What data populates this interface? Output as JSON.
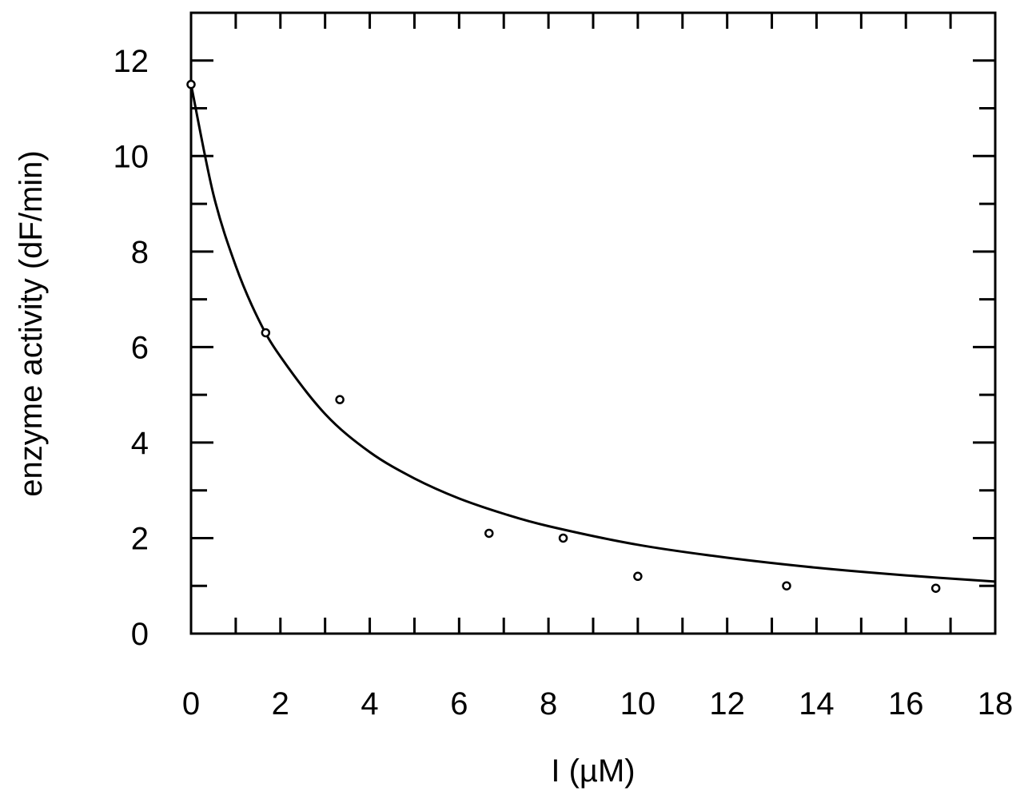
{
  "chart_data": {
    "type": "scatter",
    "title": "",
    "xlabel": "I (µM)",
    "ylabel": "enzyme activity (dF/min)",
    "xlim": [
      0,
      18
    ],
    "ylim": [
      0,
      13
    ],
    "x_ticks": [
      0,
      2,
      4,
      6,
      8,
      10,
      12,
      14,
      16,
      18
    ],
    "x_tick_labels": [
      "0",
      "2",
      "4",
      "6",
      "8",
      "10",
      "12",
      "14",
      "16",
      "18"
    ],
    "x_minor_step": 1,
    "y_ticks": [
      0,
      2,
      4,
      6,
      8,
      10,
      12
    ],
    "y_tick_labels": [
      "0",
      "2",
      "4",
      "6",
      "8",
      "10",
      "12"
    ],
    "y_minor_step": 1,
    "grid": false,
    "legend": "none",
    "series": [
      {
        "kind": "points",
        "marker": "open-circle",
        "x": [
          0,
          1.67,
          3.33,
          6.67,
          8.33,
          10,
          13.33,
          16.67
        ],
        "y": [
          11.5,
          6.3,
          4.9,
          2.1,
          2.0,
          1.2,
          1.0,
          0.95
        ]
      },
      {
        "kind": "fit-curve",
        "x": [
          0,
          0.5,
          1,
          1.5,
          2,
          3,
          4,
          5,
          6,
          7,
          8,
          10,
          12,
          14,
          16,
          18
        ],
        "y": [
          11.5,
          9.2,
          7.7,
          6.6,
          5.8,
          4.6,
          3.8,
          3.25,
          2.83,
          2.51,
          2.25,
          1.86,
          1.59,
          1.38,
          1.22,
          1.09
        ]
      }
    ],
    "colors": {
      "axes": "#000000",
      "markers": "#000000",
      "curve": "#000000",
      "background": "#ffffff"
    }
  }
}
